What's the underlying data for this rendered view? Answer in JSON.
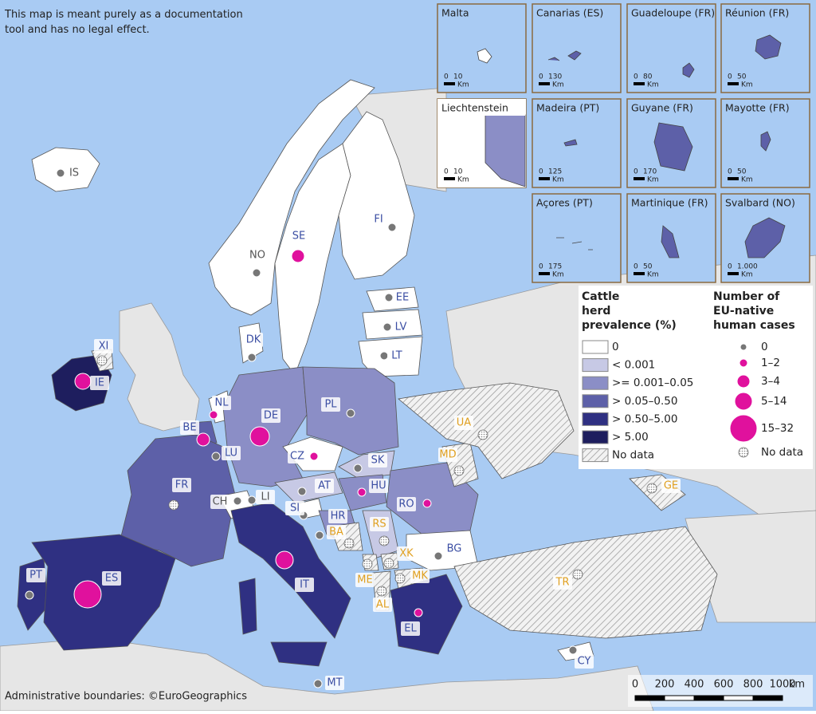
{
  "disclaimer": "This map is meant purely as a documentation tool and has no legal effect.",
  "attribution": "Administrative boundaries: ©EuroGeographics",
  "insets": [
    {
      "title": "Malta",
      "scale": [
        "0",
        "10"
      ],
      "unit": "Km"
    },
    {
      "title": "Canarias (ES)",
      "scale": [
        "0",
        "130"
      ],
      "unit": "Km"
    },
    {
      "title": "Guadeloupe (FR)",
      "scale": [
        "0",
        "80"
      ],
      "unit": "Km"
    },
    {
      "title": "Réunion (FR)",
      "scale": [
        "0",
        "50"
      ],
      "unit": "Km"
    },
    {
      "title": "Liechtenstein",
      "scale": [
        "0",
        "10"
      ],
      "unit": "Km"
    },
    {
      "title": "Madeira (PT)",
      "scale": [
        "0",
        "125"
      ],
      "unit": "Km"
    },
    {
      "title": "Guyane (FR)",
      "scale": [
        "0",
        "170"
      ],
      "unit": "Km"
    },
    {
      "title": "Mayotte (FR)",
      "scale": [
        "0",
        "50"
      ],
      "unit": "Km"
    },
    {
      "title": "Açores (PT)",
      "scale": [
        "0",
        "175"
      ],
      "unit": "Km"
    },
    {
      "title": "Martinique (FR)",
      "scale": [
        "0",
        "50"
      ],
      "unit": "Km"
    },
    {
      "title": "Svalbard (NO)",
      "scale": [
        "0",
        "1.000"
      ],
      "unit": "Km"
    }
  ],
  "legend_prevalence": {
    "title": "Cattle herd prevalence (%)",
    "items": [
      "0",
      "< 0.001",
      ">= 0.001–0.05",
      "> 0.05–0.50",
      "> 0.50–5.00",
      "> 5.00",
      "No data"
    ]
  },
  "legend_cases": {
    "title": "Number of EU-native human cases",
    "items": [
      "0",
      "1–2",
      "3–4",
      "5–14",
      "15–32",
      "No data"
    ]
  },
  "countries": [
    "IS",
    "NO",
    "SE",
    "FI",
    "EE",
    "LV",
    "LT",
    "DK",
    "XI",
    "IE",
    "NL",
    "BE",
    "LU",
    "DE",
    "PL",
    "CZ",
    "SK",
    "FR",
    "CH",
    "LI",
    "AT",
    "HU",
    "RO",
    "SI",
    "HR",
    "BA",
    "RS",
    "MD",
    "UA",
    "GE",
    "PT",
    "ES",
    "IT",
    "ME",
    "XK",
    "MK",
    "AL",
    "BG",
    "EL",
    "TR",
    "CY",
    "MT"
  ],
  "scale_bar": {
    "ticks": [
      "0",
      "200",
      "400",
      "600",
      "800",
      "1000"
    ],
    "unit": "km"
  }
}
